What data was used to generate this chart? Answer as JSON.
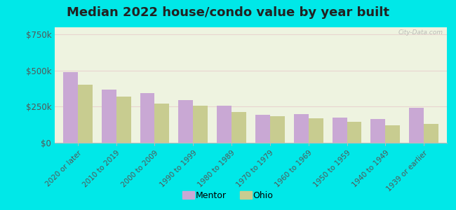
{
  "title": "Median 2022 house/condo value by year built",
  "categories": [
    "2020 or later",
    "2010 to 2019",
    "2000 to 2009",
    "1990 to 1999",
    "1980 to 1989",
    "1970 to 1979",
    "1960 to 1969",
    "1950 to 1959",
    "1940 to 1949",
    "1939 or earlier"
  ],
  "mentor_values": [
    490000,
    370000,
    345000,
    295000,
    255000,
    195000,
    200000,
    175000,
    165000,
    240000
  ],
  "ohio_values": [
    400000,
    320000,
    270000,
    255000,
    215000,
    185000,
    170000,
    145000,
    120000,
    130000
  ],
  "mentor_color": "#c9a8d4",
  "ohio_color": "#c8cc90",
  "background_outer": "#00e8e8",
  "background_inner": "#eef3e0",
  "ytick_labels": [
    "$0",
    "$250k",
    "$500k",
    "$750k"
  ],
  "ytick_values": [
    0,
    250000,
    500000,
    750000
  ],
  "ylim": [
    0,
    800000
  ],
  "legend_labels": [
    "Mentor",
    "Ohio"
  ],
  "watermark": "City-Data.com",
  "title_fontsize": 13,
  "bar_width": 0.38,
  "xlabel_fontsize": 7.5,
  "ylabel_fontsize": 8.5,
  "grid_color": "#ddddcc",
  "spine_color": "#bbbbbb"
}
